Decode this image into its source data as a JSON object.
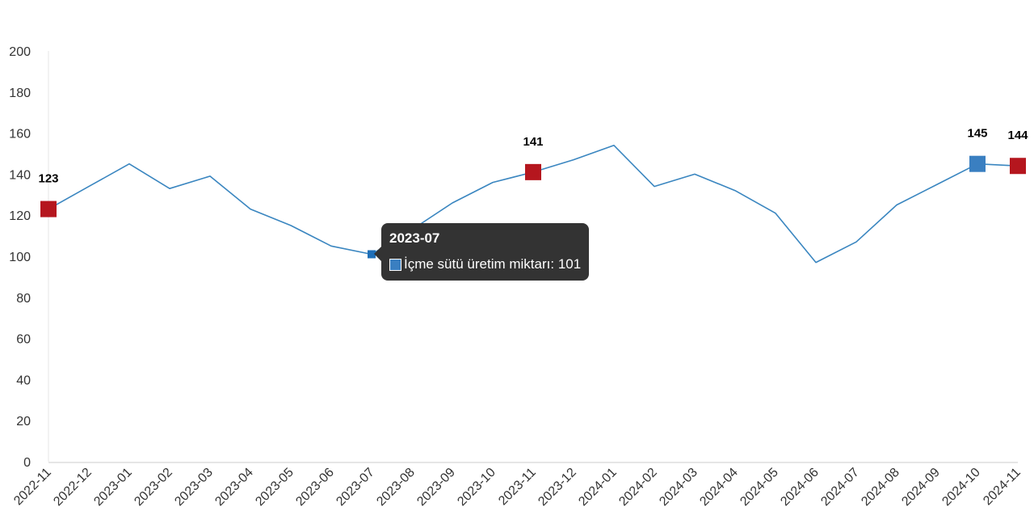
{
  "chart_data": {
    "type": "line",
    "title": "",
    "xlabel": "",
    "ylabel": "",
    "ylim": [
      0,
      200
    ],
    "yticks": [
      0,
      20,
      40,
      60,
      80,
      100,
      120,
      140,
      160,
      180,
      200
    ],
    "grid": false,
    "categories": [
      "2022-11",
      "2022-12",
      "2023-01",
      "2023-02",
      "2023-03",
      "2023-04",
      "2023-05",
      "2023-06",
      "2023-07",
      "2023-08",
      "2023-09",
      "2023-10",
      "2023-11",
      "2023-12",
      "2024-01",
      "2024-02",
      "2024-03",
      "2024-04",
      "2024-05",
      "2024-06",
      "2024-07",
      "2024-08",
      "2024-09",
      "2024-10",
      "2024-11"
    ],
    "series": [
      {
        "name": "İçme sütü üretim miktarı",
        "color": "#3a86c0",
        "values": [
          123,
          134,
          145,
          133,
          139,
          123,
          115,
          105,
          101,
          113,
          126,
          136,
          141,
          147,
          154,
          134,
          140,
          132,
          121,
          97,
          107,
          125,
          135,
          145,
          144
        ]
      }
    ],
    "highlights": [
      {
        "category": "2022-11",
        "label": "123",
        "color": "#b5161e"
      },
      {
        "category": "2023-11",
        "label": "141",
        "color": "#b5161e"
      },
      {
        "category": "2024-10",
        "label": "145",
        "color": "#3a7fc1"
      },
      {
        "category": "2024-11",
        "label": "144",
        "color": "#b5161e"
      }
    ],
    "tooltip": {
      "category": "2023-07",
      "title": "2023-07",
      "series_label": "İçme sütü üretim miktarı: 101"
    }
  }
}
